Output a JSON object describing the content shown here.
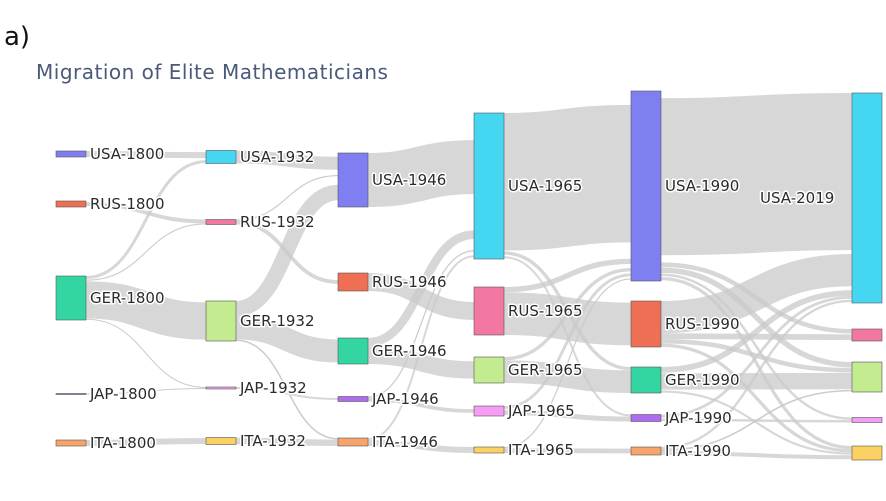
{
  "panel_label": "a)",
  "chart_data": {
    "type": "sankey",
    "title": "Migration of Elite Mathematicians",
    "nodes": [
      {
        "id": "USA-1800",
        "label": "USA-1800",
        "color": "#7f7ff2"
      },
      {
        "id": "RUS-1800",
        "label": "RUS-1800",
        "color": "#ef6f55"
      },
      {
        "id": "GER-1800",
        "label": "GER-1800",
        "color": "#33d6a3"
      },
      {
        "id": "JAP-1800",
        "label": "JAP-1800",
        "color": "#b06cf0"
      },
      {
        "id": "ITA-1800",
        "label": "ITA-1800",
        "color": "#f7a36a"
      },
      {
        "id": "USA-1932",
        "label": "USA-1932",
        "color": "#45d7f2"
      },
      {
        "id": "RUS-1932",
        "label": "RUS-1932",
        "color": "#f277a3"
      },
      {
        "id": "GER-1932",
        "label": "GER-1932",
        "color": "#c3ec90"
      },
      {
        "id": "JAP-1932",
        "label": "JAP-1932",
        "color": "#f59df5"
      },
      {
        "id": "ITA-1932",
        "label": "ITA-1932",
        "color": "#fbd262"
      },
      {
        "id": "USA-1946",
        "label": "USA-1946",
        "color": "#7f7ff2"
      },
      {
        "id": "RUS-1946",
        "label": "RUS-1946",
        "color": "#ef6f55"
      },
      {
        "id": "GER-1946",
        "label": "GER-1946",
        "color": "#33d6a3"
      },
      {
        "id": "JAP-1946",
        "label": "JAP-1946",
        "color": "#b06cf0"
      },
      {
        "id": "ITA-1946",
        "label": "ITA-1946",
        "color": "#f7a36a"
      },
      {
        "id": "USA-1965",
        "label": "USA-1965",
        "color": "#45d7f2"
      },
      {
        "id": "RUS-1965",
        "label": "RUS-1965",
        "color": "#f277a3"
      },
      {
        "id": "GER-1965",
        "label": "GER-1965",
        "color": "#c3ec90"
      },
      {
        "id": "JAP-1965",
        "label": "JAP-1965",
        "color": "#f59df5"
      },
      {
        "id": "ITA-1965",
        "label": "ITA-1965",
        "color": "#fbd262"
      },
      {
        "id": "USA-1990",
        "label": "USA-1990",
        "color": "#7f7ff2"
      },
      {
        "id": "RUS-1990",
        "label": "RUS-1990",
        "color": "#ef6f55"
      },
      {
        "id": "GER-1990",
        "label": "GER-1990",
        "color": "#33d6a3"
      },
      {
        "id": "JAP-1990",
        "label": "JAP-1990",
        "color": "#b06cf0"
      },
      {
        "id": "ITA-1990",
        "label": "ITA-1990",
        "color": "#f7a36a"
      },
      {
        "id": "USA-2019",
        "label": "USA-2019",
        "color": "#45d7f2"
      },
      {
        "id": "RUS-2019",
        "label": "",
        "color": "#f277a3"
      },
      {
        "id": "GER-2019",
        "label": "",
        "color": "#c3ec90"
      },
      {
        "id": "JAP-2019",
        "label": "",
        "color": "#f59df5"
      },
      {
        "id": "ITA-2019",
        "label": "",
        "color": "#fbd262"
      }
    ],
    "links": [
      {
        "source": "USA-1800",
        "target": "USA-1932",
        "value": 1
      },
      {
        "source": "RUS-1800",
        "target": "RUS-1932",
        "value": 1
      },
      {
        "source": "GER-1800",
        "target": "USA-1932",
        "value": 0.4
      },
      {
        "source": "GER-1800",
        "target": "RUS-1932",
        "value": 0.3
      },
      {
        "source": "GER-1800",
        "target": "GER-1932",
        "value": 5
      },
      {
        "source": "GER-1800",
        "target": "JAP-1932",
        "value": 0.2
      },
      {
        "source": "JAP-1800",
        "target": "JAP-1932",
        "value": 0.2
      },
      {
        "source": "ITA-1800",
        "target": "ITA-1932",
        "value": 0.8
      },
      {
        "source": "USA-1932",
        "target": "USA-1946",
        "value": 1.4
      },
      {
        "source": "RUS-1932",
        "target": "USA-1946",
        "value": 0.3
      },
      {
        "source": "RUS-1932",
        "target": "RUS-1946",
        "value": 1
      },
      {
        "source": "GER-1932",
        "target": "USA-1946",
        "value": 2
      },
      {
        "source": "GER-1932",
        "target": "GER-1946",
        "value": 3
      },
      {
        "source": "GER-1932",
        "target": "ITA-1946",
        "value": 0.2
      },
      {
        "source": "JAP-1932",
        "target": "JAP-1946",
        "value": 0.4
      },
      {
        "source": "ITA-1932",
        "target": "ITA-1946",
        "value": 0.8
      },
      {
        "source": "USA-1946",
        "target": "USA-1965",
        "value": 4
      },
      {
        "source": "RUS-1946",
        "target": "RUS-1965",
        "value": 1.5
      },
      {
        "source": "GER-1946",
        "target": "USA-1965",
        "value": 1
      },
      {
        "source": "GER-1946",
        "target": "GER-1965",
        "value": 2
      },
      {
        "source": "JAP-1946",
        "target": "USA-1965",
        "value": 0.2
      },
      {
        "source": "JAP-1946",
        "target": "JAP-1965",
        "value": 0.6
      },
      {
        "source": "ITA-1946",
        "target": "USA-1965",
        "value": 0.2
      },
      {
        "source": "ITA-1946",
        "target": "ITA-1965",
        "value": 0.6
      },
      {
        "source": "USA-1965",
        "target": "USA-1990",
        "value": 8
      },
      {
        "source": "USA-1965",
        "target": "GER-1990",
        "value": 0.3
      },
      {
        "source": "USA-1965",
        "target": "JAP-1990",
        "value": 0.2
      },
      {
        "source": "RUS-1965",
        "target": "RUS-1990",
        "value": 4
      },
      {
        "source": "RUS-1965",
        "target": "USA-1990",
        "value": 0.5
      },
      {
        "source": "GER-1965",
        "target": "GER-1990",
        "value": 2
      },
      {
        "source": "GER-1965",
        "target": "USA-1990",
        "value": 0.3
      },
      {
        "source": "JAP-1965",
        "target": "JAP-1990",
        "value": 0.5
      },
      {
        "source": "JAP-1965",
        "target": "USA-1990",
        "value": 0.2
      },
      {
        "source": "ITA-1965",
        "target": "ITA-1990",
        "value": 0.8
      },
      {
        "source": "ITA-1965",
        "target": "USA-1990",
        "value": 0.2
      },
      {
        "source": "USA-1990",
        "target": "USA-2019",
        "value": 11
      },
      {
        "source": "USA-1990",
        "target": "RUS-2019",
        "value": 0.3
      },
      {
        "source": "USA-1990",
        "target": "GER-2019",
        "value": 0.4
      },
      {
        "source": "USA-1990",
        "target": "JAP-2019",
        "value": 0.2
      },
      {
        "source": "USA-1990",
        "target": "ITA-2019",
        "value": 0.3
      },
      {
        "source": "RUS-1990",
        "target": "USA-2019",
        "value": 2.8
      },
      {
        "source": "RUS-1990",
        "target": "RUS-2019",
        "value": 0.5
      },
      {
        "source": "RUS-1990",
        "target": "GER-2019",
        "value": 0.4
      },
      {
        "source": "RUS-1990",
        "target": "ITA-2019",
        "value": 0.3
      },
      {
        "source": "GER-1990",
        "target": "GER-2019",
        "value": 1.2
      },
      {
        "source": "GER-1990",
        "target": "USA-2019",
        "value": 0.4
      },
      {
        "source": "GER-1990",
        "target": "ITA-2019",
        "value": 0.2
      },
      {
        "source": "JAP-1990",
        "target": "JAP-2019",
        "value": 0.2
      },
      {
        "source": "JAP-1990",
        "target": "USA-2019",
        "value": 0.2
      },
      {
        "source": "ITA-1990",
        "target": "ITA-2019",
        "value": 0.5
      },
      {
        "source": "ITA-1990",
        "target": "USA-2019",
        "value": 0.3
      },
      {
        "source": "ITA-1990",
        "target": "GER-2019",
        "value": 0.2
      }
    ]
  }
}
